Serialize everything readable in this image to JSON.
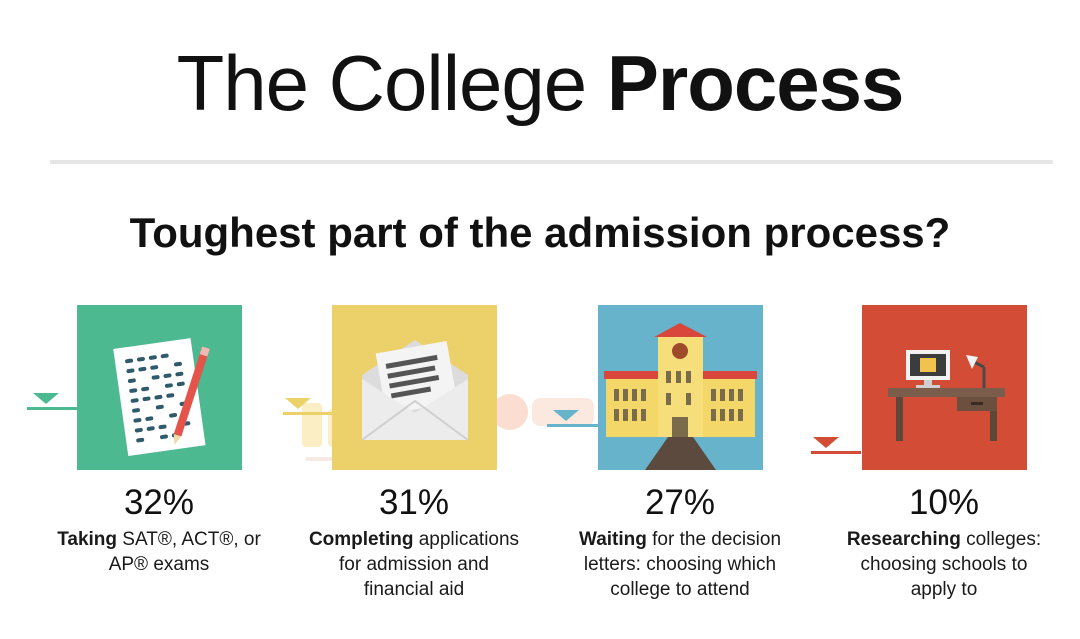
{
  "header": {
    "title_light": "The College",
    "title_bold": "Process",
    "subtitle": "Toughest part of the admission process?"
  },
  "colors": {
    "green": "#4db991",
    "yellow": "#ecd06a",
    "blue": "#66b3cb",
    "red": "#d24c36"
  },
  "items": [
    {
      "icon": "exam-sheet-icon",
      "percent": "32%",
      "bold": "Taking",
      "text_line1": " SAT®, ACT®, or",
      "text_line2": "AP® exams",
      "text_line3": ""
    },
    {
      "icon": "envelope-letter-icon",
      "percent": "31%",
      "bold": "Completing",
      "text_line1": " applications",
      "text_line2": "for admission and",
      "text_line3": "financial aid"
    },
    {
      "icon": "college-building-icon",
      "percent": "27%",
      "bold": "Waiting",
      "text_line1": " for the decision",
      "text_line2": "letters: choosing which",
      "text_line3": "college to attend"
    },
    {
      "icon": "desk-computer-icon",
      "percent": "10%",
      "bold": "Researching",
      "text_line1": " colleges:",
      "text_line2": "choosing schools to",
      "text_line3": "apply to"
    }
  ]
}
